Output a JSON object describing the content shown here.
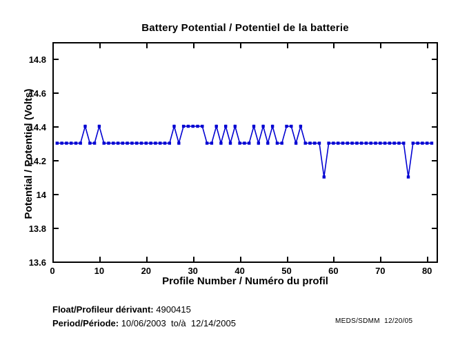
{
  "chart_data": {
    "type": "line",
    "title": "Battery Potential / Potentiel de la batterie",
    "xlabel": "Profile Number / Numéro du profil",
    "ylabel": "Potential / Potentiel (Volts)",
    "line_color": "#0000d2",
    "marker": "filled-square",
    "xlim": [
      0,
      82.3
    ],
    "ylim": [
      13.6,
      14.906
    ],
    "xticks": [
      0,
      10,
      20,
      30,
      40,
      50,
      60,
      70,
      80
    ],
    "yticks": [
      13.6,
      13.8,
      14,
      14.2,
      14.4,
      14.6,
      14.8
    ],
    "xtick_labels": [
      "0",
      "10",
      "20",
      "30",
      "40",
      "50",
      "60",
      "70",
      "80"
    ],
    "ytick_labels": [
      "13.6",
      "13.8",
      "14",
      "14.2",
      "14.4",
      "14.6",
      "14.8"
    ],
    "grid": false,
    "x": [
      1,
      2,
      3,
      4,
      5,
      6,
      7,
      8,
      9,
      10,
      11,
      12,
      13,
      14,
      15,
      16,
      17,
      18,
      19,
      20,
      21,
      22,
      23,
      24,
      25,
      26,
      27,
      28,
      29,
      30,
      31,
      32,
      33,
      34,
      35,
      36,
      37,
      38,
      39,
      40,
      41,
      42,
      43,
      44,
      45,
      46,
      47,
      48,
      49,
      50,
      51,
      52,
      53,
      54,
      55,
      56,
      57,
      58,
      59,
      60,
      61,
      62,
      63,
      64,
      65,
      66,
      67,
      68,
      69,
      70,
      71,
      72,
      73,
      74,
      75,
      76,
      77,
      78,
      79,
      80,
      81
    ],
    "values": [
      14.3,
      14.3,
      14.3,
      14.3,
      14.3,
      14.3,
      14.4,
      14.3,
      14.3,
      14.4,
      14.3,
      14.3,
      14.3,
      14.3,
      14.3,
      14.3,
      14.3,
      14.3,
      14.3,
      14.3,
      14.3,
      14.3,
      14.3,
      14.3,
      14.3,
      14.4,
      14.3,
      14.4,
      14.4,
      14.4,
      14.4,
      14.4,
      14.3,
      14.3,
      14.4,
      14.3,
      14.4,
      14.3,
      14.4,
      14.3,
      14.3,
      14.3,
      14.4,
      14.3,
      14.4,
      14.3,
      14.4,
      14.3,
      14.3,
      14.4,
      14.4,
      14.3,
      14.4,
      14.3,
      14.3,
      14.3,
      14.3,
      14.1,
      14.3,
      14.3,
      14.3,
      14.3,
      14.3,
      14.3,
      14.3,
      14.3,
      14.3,
      14.3,
      14.3,
      14.3,
      14.3,
      14.3,
      14.3,
      14.3,
      14.3,
      14.1,
      14.3,
      14.3,
      14.3,
      14.3,
      14.3
    ]
  },
  "annotations": {
    "float_label": "Float/Profileur dérivant:",
    "float_value": " 4900415",
    "period_label": "Period/Période:",
    "period_value": " 10/06/2003  to/à  12/14/2005",
    "credit": "MEDS/SDMM  12/20/05"
  }
}
